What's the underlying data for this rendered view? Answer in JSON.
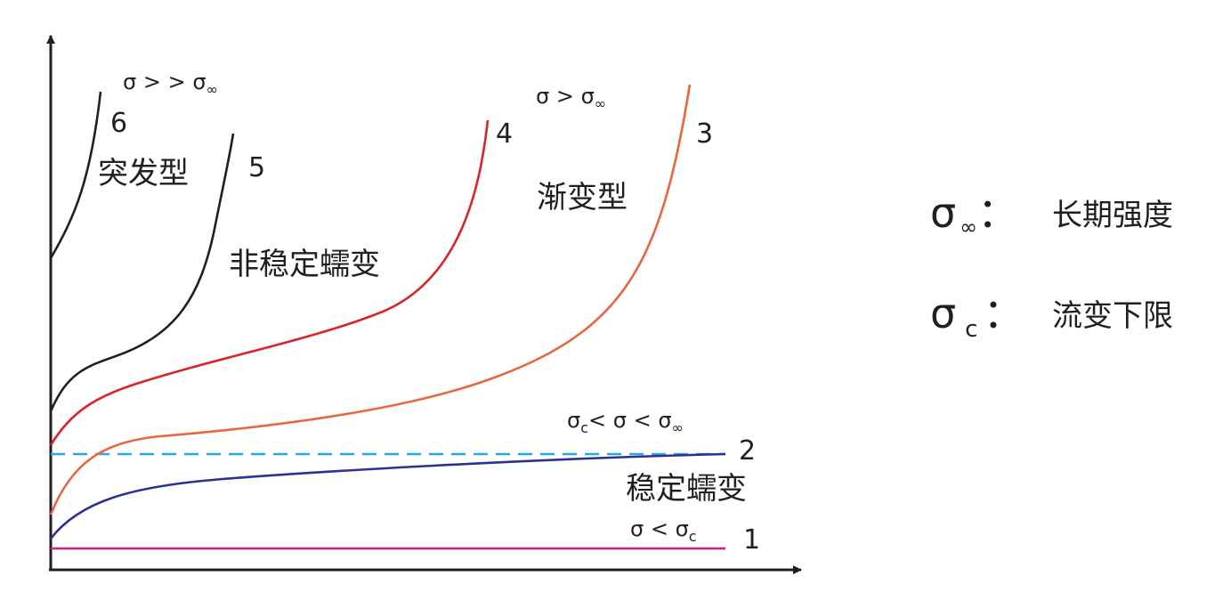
{
  "curve_numbers": [
    "1",
    "2",
    "3",
    "4",
    "5",
    "6"
  ],
  "regions": [
    "突发型",
    "非稳定蠕变",
    "渐变型",
    "稳定蠕变"
  ],
  "conditions": [
    {
      "text": "σ > > σ",
      "sub": "∞"
    },
    {
      "text": "σ > σ",
      "sub": "∞"
    },
    {
      "pre": "σ",
      "pre_sub": "c",
      "text": "< σ < σ",
      "sub": "∞"
    },
    {
      "text": "σ < σ",
      "sub": "c"
    }
  ],
  "legend": [
    {
      "symbol": "σ",
      "sub": "∞",
      "colon": "：",
      "label": "长期强度"
    },
    {
      "symbol": "σ",
      "sub": "c",
      "colon": "：",
      "label": "流变下限"
    }
  ]
}
